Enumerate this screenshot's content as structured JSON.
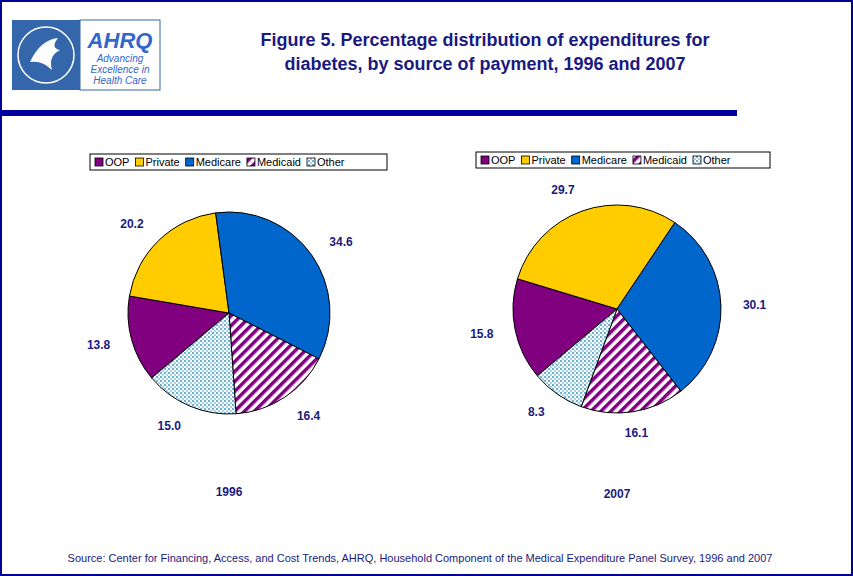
{
  "figure": {
    "title": [
      "Figure 5. Percentage distribution of expenditures for",
      "diabetes, by source of payment, 1996 and 2007"
    ],
    "source": "Source: Center for Financing, Access, and Cost Trends, AHRQ, Household Component of the Medical Expenditure Panel Survey, 1996 and 2007"
  },
  "logo": {
    "name": "AHRQ",
    "tagline": [
      "Advancing",
      "Excellence in",
      "Health Care"
    ]
  },
  "chart_data": [
    {
      "type": "pie",
      "title": "1996",
      "categories": [
        "OOP",
        "Private",
        "Medicare",
        "Medicaid",
        "Other"
      ],
      "values": [
        13.8,
        20.2,
        34.6,
        16.4,
        15.0
      ],
      "value_labels": [
        "13.8",
        "20.2",
        "34.6",
        "16.4",
        "15.0"
      ],
      "colors": [
        "#800080",
        "#ffcc00",
        "#0066cc",
        "#800080",
        "#3399cc"
      ],
      "data_labels": true,
      "legend": "top"
    },
    {
      "type": "pie",
      "title": "2007",
      "categories": [
        "OOP",
        "Private",
        "Medicare",
        "Medicaid",
        "Other"
      ],
      "values": [
        15.8,
        29.7,
        30.1,
        16.1,
        8.3
      ],
      "value_labels": [
        "15.8",
        "29.7",
        "30.1",
        "16.1",
        "8.3"
      ],
      "colors": [
        "#800080",
        "#ffcc00",
        "#0066cc",
        "#800080",
        "#3399cc"
      ],
      "data_labels": true,
      "legend": "top"
    }
  ]
}
